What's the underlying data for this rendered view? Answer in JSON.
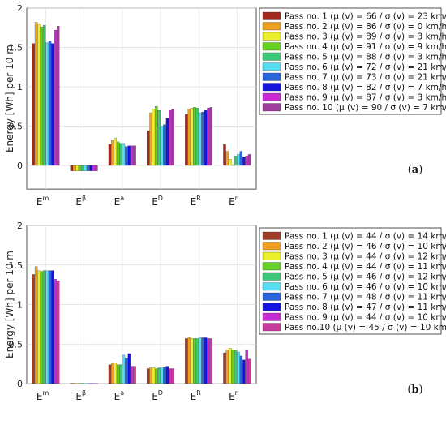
{
  "panels": [
    {
      "label_open": "(",
      "label_letter": "a",
      "label_close": ")"
    },
    {
      "label_open": "(",
      "label_letter": "b",
      "label_close": ")"
    }
  ],
  "chart_data": [
    {
      "type": "bar",
      "categories": [
        {
          "base": "E",
          "sup": "m"
        },
        {
          "base": "E",
          "sup": "β"
        },
        {
          "base": "E",
          "sup": "a"
        },
        {
          "base": "E",
          "sup": "D"
        },
        {
          "base": "E",
          "sup": "R"
        },
        {
          "base": "E",
          "sup": "n"
        }
      ],
      "ylabel": "Energy [Wh] per 10 m",
      "ylim": [
        -0.3,
        2
      ],
      "yticks": [
        "0",
        "0.5",
        "1",
        "1.5",
        "2"
      ],
      "grid": true,
      "legend_position": "right",
      "series": [
        {
          "name": "Pass no. 1 (μ (v) = 66 / σ (v) = 23 km/h)",
          "color": "#a3281c",
          "values": [
            1.55,
            -0.07,
            0.27,
            0.44,
            0.65,
            0.27
          ]
        },
        {
          "name": "Pass no. 2 (μ (v) = 86 / σ (v) = 0 km/h)",
          "color": "#f0a01e",
          "values": [
            1.82,
            -0.07,
            0.32,
            0.67,
            0.72,
            0.18
          ]
        },
        {
          "name": "Pass no. 3 (μ (v) = 89 / σ (v) = 3 km/h)",
          "color": "#ecf02a",
          "values": [
            1.8,
            -0.07,
            0.35,
            0.72,
            0.73,
            0.08
          ]
        },
        {
          "name": "Pass no. 4 (μ (v) = 91 / σ (v) = 9 km/h)",
          "color": "#64d21e",
          "values": [
            1.76,
            -0.07,
            0.3,
            0.75,
            0.74,
            0.01
          ]
        },
        {
          "name": "Pass no. 5 (μ (v) = 88 / σ (v) = 3 km/h)",
          "color": "#3cc878",
          "values": [
            1.78,
            -0.07,
            0.28,
            0.7,
            0.73,
            0.12
          ]
        },
        {
          "name": "Pass no. 6 (μ (v) = 72 / σ (v) = 21 km/h)",
          "color": "#5adcf0",
          "values": [
            1.56,
            -0.07,
            0.28,
            0.5,
            0.67,
            0.14
          ]
        },
        {
          "name": "Pass no. 7 (μ (v) = 73 / σ (v) = 21 km/h)",
          "color": "#2864dc",
          "values": [
            1.58,
            -0.07,
            0.24,
            0.52,
            0.68,
            0.18
          ]
        },
        {
          "name": "Pass no. 8 (μ (v) = 82 / σ (v) = 7 km/h)",
          "color": "#1414dc",
          "values": [
            1.55,
            -0.07,
            0.25,
            0.6,
            0.7,
            0.11
          ]
        },
        {
          "name": "Pass no. 9 (μ (v) = 87 / σ (v) = 3 km/h)",
          "color": "#c82ad2",
          "values": [
            1.72,
            -0.07,
            0.25,
            0.7,
            0.73,
            0.12
          ]
        },
        {
          "name": "Pass no. 10 (μ (v) = 90 / σ (v) = 7 km/h)",
          "color": "#a03c9c",
          "values": [
            1.77,
            -0.07,
            0.25,
            0.72,
            0.74,
            0.14
          ]
        }
      ]
    },
    {
      "type": "bar",
      "categories": [
        {
          "base": "E",
          "sup": "m"
        },
        {
          "base": "E",
          "sup": "β"
        },
        {
          "base": "E",
          "sup": "a"
        },
        {
          "base": "E",
          "sup": "D"
        },
        {
          "base": "E",
          "sup": "R"
        },
        {
          "base": "E",
          "sup": "n"
        }
      ],
      "ylabel": "Energy [Wh] per 10 m",
      "ylim": [
        0,
        2
      ],
      "yticks": [
        "0",
        "0.5",
        "1",
        "1.5",
        "2"
      ],
      "grid": true,
      "legend_position": "right",
      "series": [
        {
          "name": "Pass no. 1 (μ (v) = 44 / σ (v) = 14 km/h)",
          "color": "#a03c28",
          "values": [
            1.38,
            0.005,
            0.24,
            0.19,
            0.57,
            0.39
          ]
        },
        {
          "name": "Pass no. 2 (μ (v) = 46 / σ (v) = 10 km/h)",
          "color": "#f0a01e",
          "values": [
            1.48,
            0.005,
            0.26,
            0.2,
            0.58,
            0.43
          ]
        },
        {
          "name": "Pass no. 3 (μ (v) = 44 / σ (v) = 12 km/h)",
          "color": "#ecf02a",
          "values": [
            1.43,
            0.005,
            0.26,
            0.2,
            0.57,
            0.45
          ]
        },
        {
          "name": "Pass no. 4 (μ (v) = 44 / σ (v) = 11 km/h)",
          "color": "#64d21e",
          "values": [
            1.42,
            0.005,
            0.24,
            0.19,
            0.57,
            0.43
          ]
        },
        {
          "name": "Pass no. 5 (μ (v) = 46 / σ (v) = 12 km/h)",
          "color": "#3cc878",
          "values": [
            1.43,
            0.005,
            0.24,
            0.2,
            0.57,
            0.42
          ]
        },
        {
          "name": "Pass no. 6 (μ (v) = 46 / σ (v) = 10 km/h)",
          "color": "#5adcf0",
          "values": [
            1.43,
            0.003,
            0.36,
            0.2,
            0.58,
            0.4
          ]
        },
        {
          "name": "Pass no. 7 (μ (v) = 48 / σ (v) = 11 km/h)",
          "color": "#2864dc",
          "values": [
            1.43,
            0.003,
            0.32,
            0.21,
            0.58,
            0.35
          ]
        },
        {
          "name": "Pass no. 8 (μ (v) = 47 / σ (v) = 11 km/h)",
          "color": "#1414dc",
          "values": [
            1.43,
            0.003,
            0.38,
            0.22,
            0.58,
            0.3
          ]
        },
        {
          "name": "Pass no. 9 (μ (v) = 44 / σ (v) = 10 km/h)",
          "color": "#c82ad2",
          "values": [
            1.32,
            0.003,
            0.22,
            0.19,
            0.57,
            0.42
          ]
        },
        {
          "name": "Pass no.10 (μ (v) = 45 / σ (v) = 10 km/h)",
          "color": "#c83c9c",
          "values": [
            1.3,
            0.003,
            0.22,
            0.19,
            0.57,
            0.31
          ]
        }
      ]
    }
  ]
}
